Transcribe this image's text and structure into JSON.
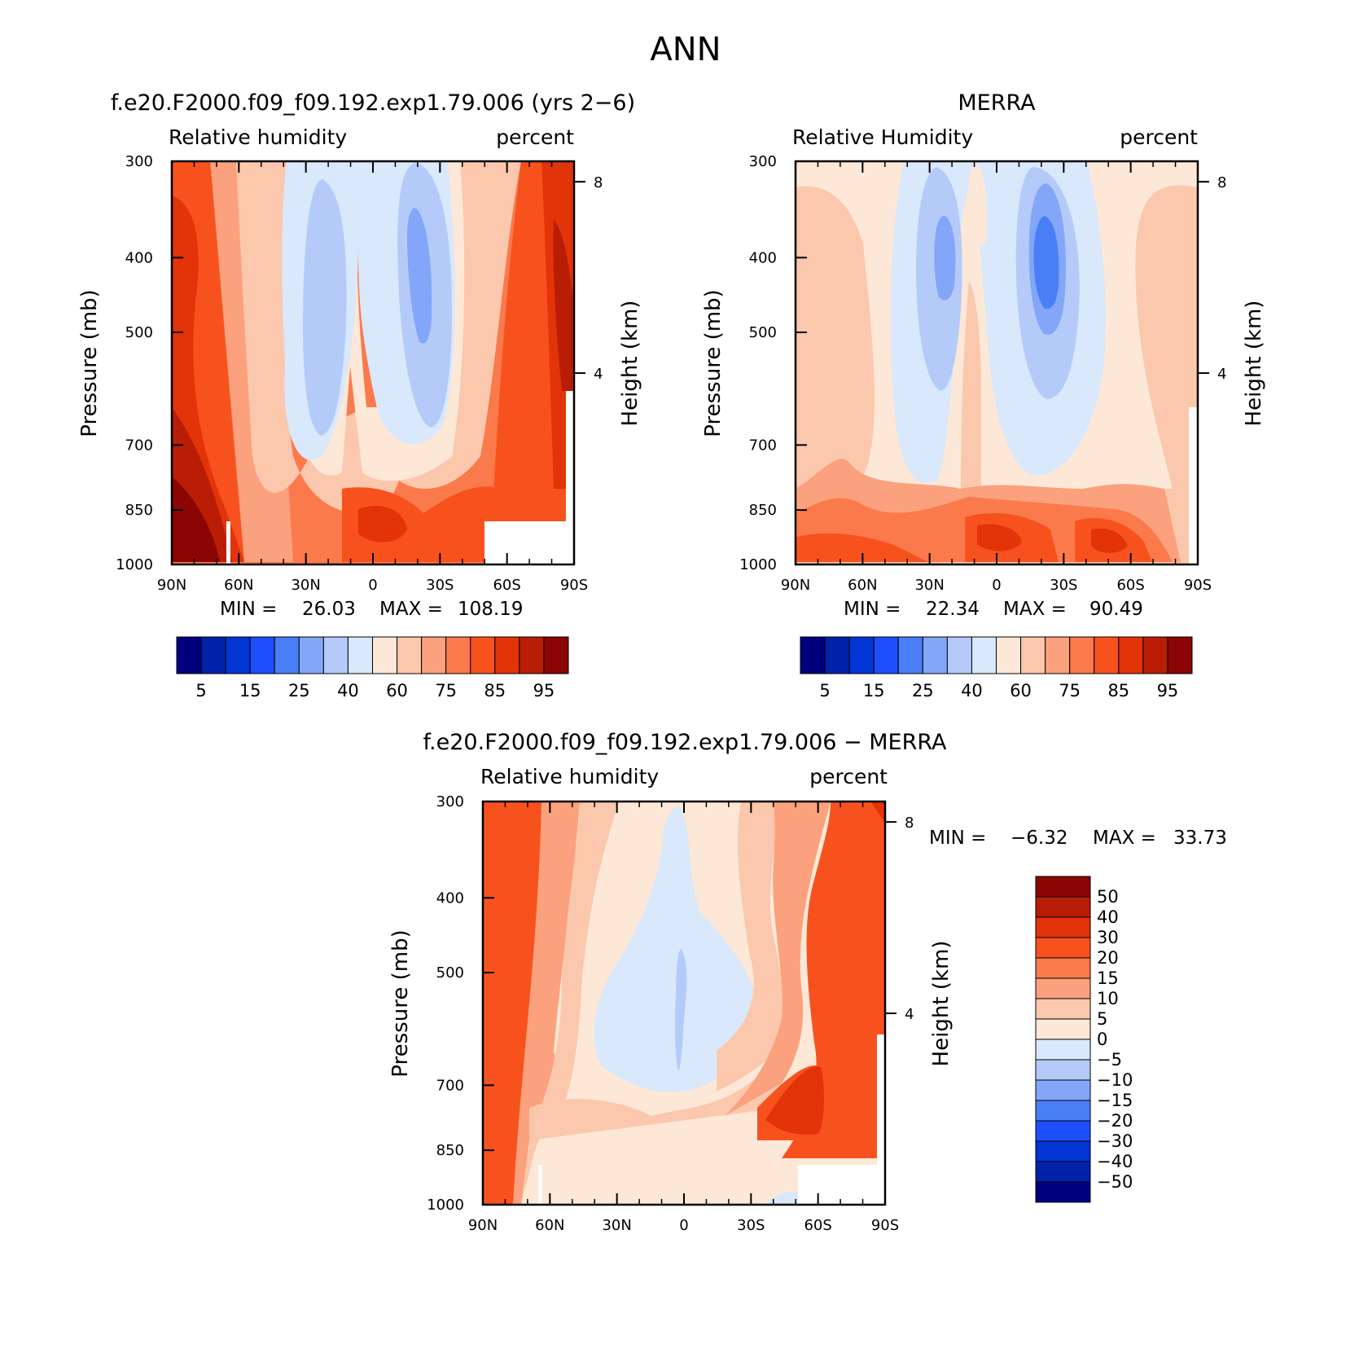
{
  "figure": {
    "title": "ANN"
  },
  "chart_data": [
    {
      "type": "heatmap",
      "panel": "model",
      "title": "f.e20.F2000.f09_f09.192.exp1.79.006 (yrs 2−6)",
      "left_label": "Relative humidity",
      "right_label": "percent",
      "xlabel": "",
      "ylabel": "Pressure (mb)",
      "y2label": "Height (km)",
      "x_ticks": [
        "90N",
        "60N",
        "30N",
        "0",
        "30S",
        "60S",
        "90S"
      ],
      "y_ticks": [
        "300",
        "400",
        "500",
        "700",
        "850",
        "1000"
      ],
      "y2_ticks": [
        "8",
        "4"
      ],
      "xlim": [
        90,
        -90
      ],
      "ylim": [
        1000,
        300
      ],
      "min_label": "MIN =",
      "min": "26.03",
      "max_label": "MAX =",
      "max": "108.19",
      "contour_levels": [
        5,
        10,
        15,
        20,
        25,
        30,
        40,
        50,
        60,
        70,
        75,
        80,
        85,
        90,
        95
      ],
      "colorbar_labels": [
        "5",
        "15",
        "25",
        "40",
        "60",
        "75",
        "85",
        "95"
      ]
    },
    {
      "type": "heatmap",
      "panel": "obs",
      "title": "MERRA",
      "left_label": "Relative Humidity",
      "right_label": "percent",
      "xlabel": "",
      "ylabel": "Pressure (mb)",
      "y2label": "Height (km)",
      "x_ticks": [
        "90N",
        "60N",
        "30N",
        "0",
        "30S",
        "60S",
        "90S"
      ],
      "y_ticks": [
        "300",
        "400",
        "500",
        "700",
        "850",
        "1000"
      ],
      "y2_ticks": [
        "8",
        "4"
      ],
      "xlim": [
        90,
        -90
      ],
      "ylim": [
        1000,
        300
      ],
      "min_label": "MIN =",
      "min": "22.34",
      "max_label": "MAX =",
      "max": "90.49",
      "contour_levels": [
        5,
        10,
        15,
        20,
        25,
        30,
        40,
        50,
        60,
        70,
        75,
        80,
        85,
        90,
        95
      ],
      "colorbar_labels": [
        "5",
        "15",
        "25",
        "40",
        "60",
        "75",
        "85",
        "95"
      ]
    },
    {
      "type": "heatmap",
      "panel": "difference",
      "title": "f.e20.F2000.f09_f09.192.exp1.79.006 − MERRA",
      "left_label": "Relative humidity",
      "right_label": "percent",
      "xlabel": "",
      "ylabel": "Pressure (mb)",
      "y2label": "Height (km)",
      "x_ticks": [
        "90N",
        "60N",
        "30N",
        "0",
        "30S",
        "60S",
        "90S"
      ],
      "y_ticks": [
        "300",
        "400",
        "500",
        "700",
        "850",
        "1000"
      ],
      "y2_ticks": [
        "8",
        "4"
      ],
      "xlim": [
        90,
        -90
      ],
      "ylim": [
        1000,
        300
      ],
      "min_label": "MIN =",
      "min": "−6.32",
      "max_label": "MAX =",
      "max": "33.73",
      "contour_levels": [
        -50,
        -40,
        -30,
        -20,
        -15,
        -10,
        -5,
        0,
        5,
        10,
        15,
        20,
        30,
        40,
        50
      ],
      "colorbar_labels": [
        "50",
        "40",
        "30",
        "20",
        "15",
        "10",
        "5",
        "0",
        "−5",
        "−10",
        "−15",
        "−20",
        "−30",
        "−40",
        "−50"
      ]
    }
  ],
  "colors": {
    "palette": [
      "#00007f",
      "#0022a8",
      "#0035d6",
      "#1e4fff",
      "#4a7ef7",
      "#83a6f8",
      "#b4cbfa",
      "#d9e8fb",
      "#fde8d7",
      "#fbc8ad",
      "#fba17d",
      "#fb7a4c",
      "#f7521e",
      "#e23309",
      "#b91d05",
      "#8a0504"
    ]
  }
}
